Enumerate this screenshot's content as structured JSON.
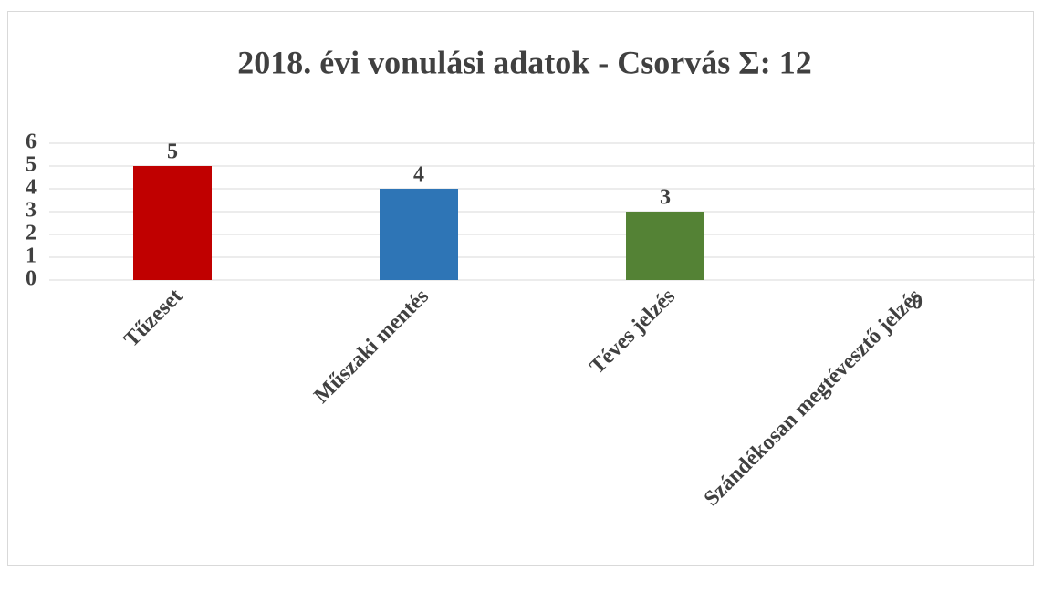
{
  "chart_data": {
    "type": "bar",
    "title": "2018. évi vonulási adatok - Csorvás Σ: 12",
    "categories": [
      "Tűzeset",
      "Műszaki mentés",
      "Téves jelzés",
      "Szándékosan megtévesztő jelzés"
    ],
    "values": [
      5,
      4,
      3,
      0
    ],
    "colors": [
      "#c00000",
      "#2e75b6",
      "#548235",
      "#7030a0"
    ],
    "ylim": [
      0,
      6
    ],
    "yticks": [
      0,
      1,
      2,
      3,
      4,
      5,
      6
    ],
    "grid": true
  }
}
